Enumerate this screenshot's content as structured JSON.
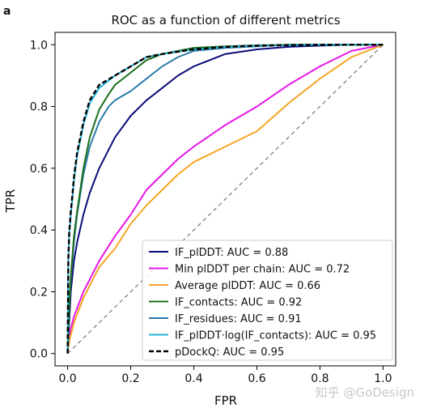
{
  "panel_label": "a",
  "watermark": "知乎 @GoDesign",
  "chart_data": {
    "type": "line",
    "title": "ROC as a function of different metrics",
    "xlabel": "FPR",
    "ylabel": "TPR",
    "xlim": [
      -0.04,
      1.04
    ],
    "ylim": [
      -0.04,
      1.04
    ],
    "xticks": [
      0.0,
      0.2,
      0.4,
      0.6,
      0.8,
      1.0
    ],
    "yticks": [
      0.0,
      0.2,
      0.4,
      0.6,
      0.8,
      1.0
    ],
    "xtick_labels": [
      "0.0",
      "0.2",
      "0.4",
      "0.6",
      "0.8",
      "1.0"
    ],
    "ytick_labels": [
      "0.0",
      "0.2",
      "0.4",
      "0.6",
      "0.8",
      "1.0"
    ],
    "grid": false,
    "legend_position": "lower-right",
    "reference_line": {
      "x": [
        0,
        1
      ],
      "y": [
        0,
        1
      ],
      "color": "#808080",
      "style": "dashed"
    },
    "series": [
      {
        "name": "IF_plDDT: AUC = 0.88",
        "color": "#0b0b7a",
        "style": "solid",
        "x": [
          0,
          0.005,
          0.01,
          0.02,
          0.03,
          0.05,
          0.07,
          0.1,
          0.12,
          0.15,
          0.2,
          0.25,
          0.3,
          0.35,
          0.4,
          0.45,
          0.5,
          0.6,
          0.7,
          0.8,
          0.9,
          1.0
        ],
        "y": [
          0,
          0.1,
          0.2,
          0.3,
          0.36,
          0.45,
          0.52,
          0.6,
          0.64,
          0.7,
          0.77,
          0.82,
          0.86,
          0.9,
          0.93,
          0.95,
          0.97,
          0.985,
          0.993,
          0.997,
          1.0,
          1.0
        ]
      },
      {
        "name": "Min plDDT per chain: AUC = 0.72",
        "color": "#e815e8",
        "style": "solid",
        "x": [
          0,
          0.005,
          0.01,
          0.02,
          0.05,
          0.1,
          0.15,
          0.2,
          0.25,
          0.3,
          0.35,
          0.4,
          0.5,
          0.6,
          0.7,
          0.8,
          0.9,
          1.0
        ],
        "y": [
          0,
          0.05,
          0.08,
          0.12,
          0.2,
          0.3,
          0.38,
          0.45,
          0.53,
          0.58,
          0.63,
          0.67,
          0.74,
          0.8,
          0.87,
          0.93,
          0.98,
          1.0
        ]
      },
      {
        "name": "Average plDDT: AUC = 0.66",
        "color": "#f5a623",
        "style": "solid",
        "x": [
          0,
          0.005,
          0.01,
          0.02,
          0.05,
          0.1,
          0.15,
          0.2,
          0.25,
          0.3,
          0.35,
          0.4,
          0.5,
          0.6,
          0.7,
          0.8,
          0.9,
          1.0
        ],
        "y": [
          0,
          0.04,
          0.06,
          0.1,
          0.18,
          0.28,
          0.34,
          0.42,
          0.48,
          0.53,
          0.58,
          0.62,
          0.67,
          0.72,
          0.81,
          0.89,
          0.96,
          1.0
        ]
      },
      {
        "name": "IF_contacts: AUC = 0.92",
        "color": "#1b6e1b",
        "style": "solid",
        "x": [
          0,
          0.005,
          0.01,
          0.02,
          0.03,
          0.05,
          0.07,
          0.1,
          0.13,
          0.15,
          0.2,
          0.25,
          0.3,
          0.35,
          0.4,
          0.5,
          0.6,
          0.7,
          0.8,
          0.9,
          1.0
        ],
        "y": [
          0,
          0.15,
          0.25,
          0.38,
          0.46,
          0.6,
          0.7,
          0.79,
          0.84,
          0.87,
          0.91,
          0.95,
          0.97,
          0.98,
          0.99,
          0.995,
          0.998,
          1.0,
          1.0,
          1.0,
          1.0
        ]
      },
      {
        "name": "IF_residues: AUC = 0.91",
        "color": "#2a7aa8",
        "style": "solid",
        "x": [
          0,
          0.005,
          0.01,
          0.02,
          0.03,
          0.05,
          0.07,
          0.1,
          0.13,
          0.15,
          0.2,
          0.25,
          0.3,
          0.35,
          0.4,
          0.5,
          0.6,
          0.7,
          0.8,
          0.9,
          1.0
        ],
        "y": [
          0,
          0.14,
          0.24,
          0.36,
          0.45,
          0.58,
          0.67,
          0.75,
          0.8,
          0.82,
          0.85,
          0.89,
          0.93,
          0.96,
          0.98,
          0.99,
          0.995,
          1.0,
          1.0,
          1.0,
          1.0
        ]
      },
      {
        "name": "IF_plDDT·log(IF_contacts): AUC = 0.95",
        "color": "#26b4d6",
        "style": "solid",
        "x": [
          0,
          0.002,
          0.005,
          0.01,
          0.015,
          0.02,
          0.03,
          0.05,
          0.07,
          0.1,
          0.15,
          0.2,
          0.25,
          0.3,
          0.4,
          0.5,
          0.6,
          0.8,
          1.0
        ],
        "y": [
          0,
          0.3,
          0.38,
          0.45,
          0.5,
          0.56,
          0.64,
          0.74,
          0.81,
          0.86,
          0.9,
          0.93,
          0.96,
          0.97,
          0.985,
          0.993,
          0.997,
          1.0,
          1.0
        ]
      },
      {
        "name": "pDockQ: AUC = 0.95",
        "color": "#000000",
        "style": "dashed",
        "x": [
          0,
          0.002,
          0.005,
          0.01,
          0.015,
          0.02,
          0.03,
          0.05,
          0.07,
          0.1,
          0.15,
          0.2,
          0.25,
          0.3,
          0.4,
          0.5,
          0.6,
          0.8,
          1.0
        ],
        "y": [
          0,
          0.3,
          0.39,
          0.46,
          0.51,
          0.57,
          0.65,
          0.75,
          0.82,
          0.87,
          0.9,
          0.93,
          0.96,
          0.97,
          0.985,
          0.993,
          0.997,
          1.0,
          1.0
        ]
      }
    ]
  }
}
